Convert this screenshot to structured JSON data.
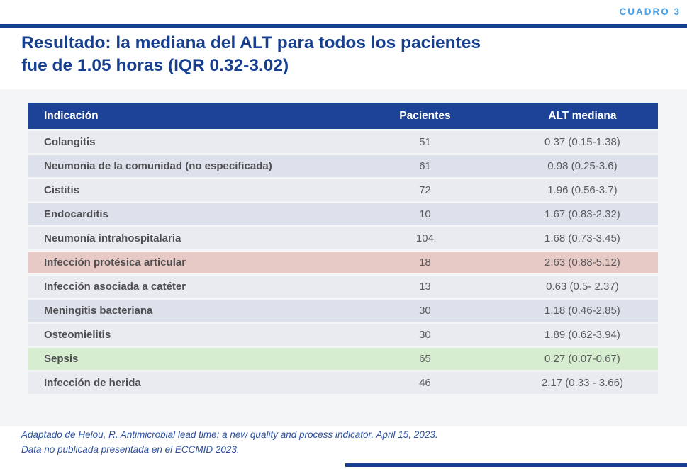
{
  "kicker": "CUADRO 3",
  "title": {
    "lead": "Resultado:",
    "rest": " la mediana del ALT para todos los pacientes",
    "line2": "fue de 1.05 horas (IQR 0.32-3.02)"
  },
  "table": {
    "headers": {
      "indication": "Indicación",
      "patients": "Pacientes",
      "alt_median": "ALT mediana"
    },
    "rows": [
      {
        "indication": "Colangitis",
        "patients": "51",
        "alt_median": "0.37 (0.15-1.38)",
        "highlight": "none"
      },
      {
        "indication": "Neumonía de la comunidad (no especificada)",
        "patients": "61",
        "alt_median": "0.98 (0.25-3.6)",
        "highlight": "none"
      },
      {
        "indication": "Cistitis",
        "patients": "72",
        "alt_median": "1.96 (0.56-3.7)",
        "highlight": "none"
      },
      {
        "indication": "Endocarditis",
        "patients": "10",
        "alt_median": "1.67 (0.83-2.32)",
        "highlight": "none"
      },
      {
        "indication": "Neumonía intrahospitalaria",
        "patients": "104",
        "alt_median": "1.68 (0.73-3.45)",
        "highlight": "none"
      },
      {
        "indication": "Infección protésica articular",
        "patients": "18",
        "alt_median": "2.63 (0.88-5.12)",
        "highlight": "pink"
      },
      {
        "indication": "Infección asociada a catéter",
        "patients": "13",
        "alt_median": "0.63 (0.5- 2.37)",
        "highlight": "none"
      },
      {
        "indication": "Meningitis bacteriana",
        "patients": "30",
        "alt_median": "1.18 (0.46-2.85)",
        "highlight": "none"
      },
      {
        "indication": "Osteomielitis",
        "patients": "30",
        "alt_median": "1.89 (0.62-3.94)",
        "highlight": "none"
      },
      {
        "indication": "Sepsis",
        "patients": "65",
        "alt_median": "0.27 (0.07-0.67)",
        "highlight": "green"
      },
      {
        "indication": "Infección de herida",
        "patients": "46",
        "alt_median": "2.17 (0.33 - 3.66)",
        "highlight": "none"
      }
    ]
  },
  "footnote": {
    "line1": "Adaptado de Helou, R. Antimicrobial lead time: a new quality and process indicator. April 15, 2023.",
    "line2": "Data no publicada presentada en el ECCMID 2023."
  },
  "colors": {
    "navy": "#173f8f",
    "header_bg": "#1c4397",
    "kicker_blue": "#4aa0e6",
    "row_light": "#e9ebf1",
    "row_dark": "#dce1eb",
    "highlight_pink": "#e7c9c6",
    "highlight_green": "#d7edcf",
    "footnote_blue": "#2c51a0"
  }
}
